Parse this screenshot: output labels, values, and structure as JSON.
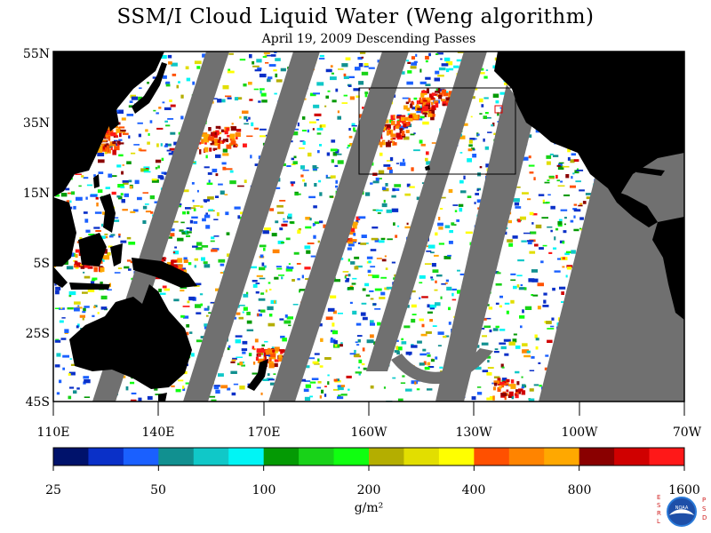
{
  "title": "SSM/I Cloud Liquid Water (Weng algorithm)",
  "subtitle": "April 19, 2009  Descending Passes",
  "map": {
    "lat_labels": [
      "55N",
      "35N",
      "15N",
      "5S",
      "25S",
      "45S"
    ],
    "lon_labels": [
      "110E",
      "140E",
      "170E",
      "160W",
      "130W",
      "100W",
      "70W"
    ],
    "lat_range": [
      -45,
      55
    ],
    "lon_range_east": [
      110,
      290
    ]
  },
  "colorbar": {
    "colors": [
      "#00126b",
      "#0a30c8",
      "#1a60ff",
      "#119090",
      "#10c8c8",
      "#00f5f5",
      "#049a04",
      "#18d218",
      "#10ff10",
      "#b4ae00",
      "#e2de00",
      "#ffff00",
      "#ff5000",
      "#ff8400",
      "#ffa800",
      "#8a0000",
      "#d00000",
      "#ff1818"
    ],
    "tick_labels": [
      "25",
      "50",
      "100",
      "200",
      "400",
      "800",
      "1600"
    ],
    "unit": "g/m²"
  },
  "logo": {
    "left_letters": "ESRL",
    "right_letters": "PSD",
    "center_text": "NOAA"
  },
  "colors": {
    "land": "#000000",
    "no_data_swath": "#707070",
    "ocean_clear": "#ffffff"
  }
}
